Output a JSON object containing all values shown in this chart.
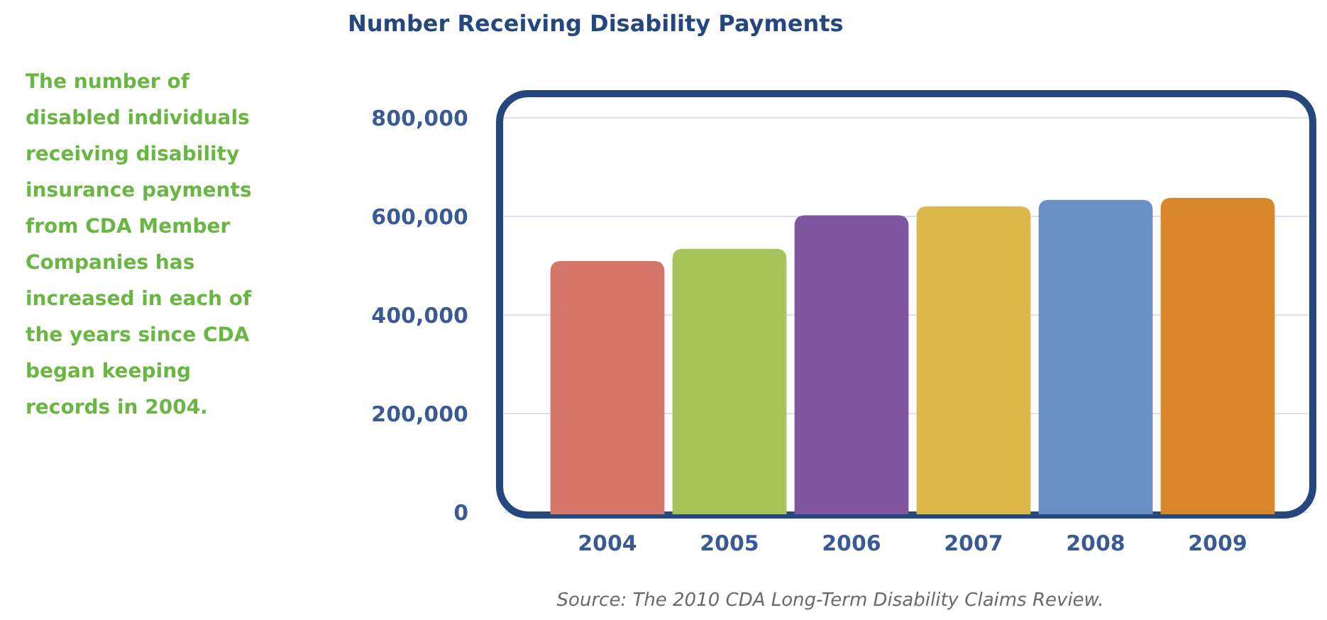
{
  "chart_data": {
    "type": "bar",
    "title": "Number Receiving Disability Payments",
    "categories": [
      "2004",
      "2005",
      "2006",
      "2007",
      "2008",
      "2009"
    ],
    "values": [
      505000,
      530000,
      598000,
      616000,
      629000,
      633000
    ],
    "colors": [
      "#d4766a",
      "#a5c55a",
      "#7f55a0",
      "#dcb84a",
      "#6a8fc6",
      "#d8872a"
    ],
    "ylim": [
      0,
      800000
    ],
    "yticks": [
      0,
      {
        "value": 200000,
        "label": "200,000"
      },
      {
        "value": 400000,
        "label": "400,000"
      },
      {
        "value": 600000,
        "label": "600,000"
      },
      {
        "value": 800000,
        "label": "800,000"
      }
    ],
    "grid": "y",
    "annotations": [
      "The number of disabled individuals receiving disability insurance payments from CDA Member Companies has increased in each of the years since CDA began keeping records in 2004.",
      "Source: The 2010 CDA Long-Term Disability Claims Review."
    ]
  }
}
